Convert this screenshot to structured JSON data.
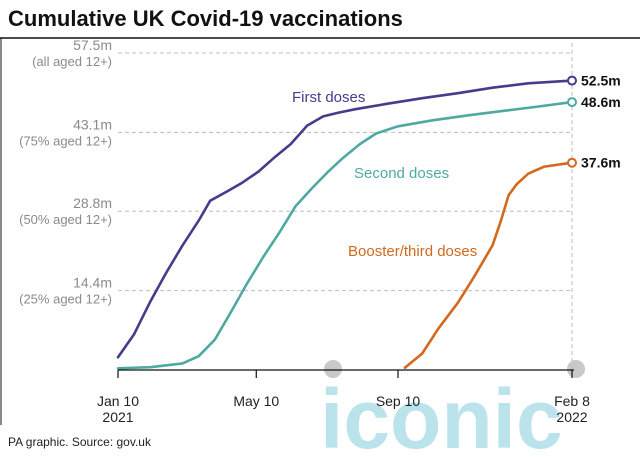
{
  "title": "Cumulative UK Covid-19 vaccinations",
  "source": "PA graphic. Source: gov.uk",
  "watermark": "iconic",
  "colors": {
    "first_doses": "#4a3a8c",
    "second_doses": "#4ea9a0",
    "booster": "#d2691e",
    "grid": "#bdbdbd",
    "watermark": "#a9dde8"
  },
  "chart_data": {
    "type": "line",
    "title": "Cumulative UK Covid-19 vaccinations",
    "xlabel": "",
    "ylabel": "",
    "ylim": [
      0,
      57.5
    ],
    "xlim": [
      "2021-01-10",
      "2022-02-08"
    ],
    "grid": "horizontal dashed",
    "y_ticks": [
      {
        "value": 14.4,
        "label": "14.4m",
        "sub": "(25% aged 12+)"
      },
      {
        "value": 28.8,
        "label": "28.8m",
        "sub": "(50% aged 12+)"
      },
      {
        "value": 43.1,
        "label": "43.1m",
        "sub": "(75% aged 12+)"
      },
      {
        "value": 57.5,
        "label": "57.5m",
        "sub": "(all aged 12+)"
      }
    ],
    "x_ticks": [
      {
        "date": "2021-01-10",
        "line1": "Jan 10",
        "line2": "2021"
      },
      {
        "date": "2021-05-10",
        "line1": "May 10",
        "line2": ""
      },
      {
        "date": "2021-09-10",
        "line1": "Sep 10",
        "line2": ""
      },
      {
        "date": "2022-02-08",
        "line1": "Feb 8",
        "line2": "2022"
      }
    ],
    "series": [
      {
        "name": "First doses",
        "end_label": "52.5m",
        "x": [
          "2021-01-10",
          "2021-01-24",
          "2021-02-07",
          "2021-02-21",
          "2021-03-07",
          "2021-03-21",
          "2021-03-31",
          "2021-04-14",
          "2021-04-28",
          "2021-05-12",
          "2021-05-26",
          "2021-06-09",
          "2021-06-23",
          "2021-07-07",
          "2021-07-21",
          "2021-08-04",
          "2021-09-01",
          "2021-10-01",
          "2021-11-01",
          "2021-12-01",
          "2022-01-01",
          "2022-02-08"
        ],
        "y": [
          2.3,
          6.5,
          12.4,
          17.7,
          22.6,
          27.1,
          30.7,
          32.3,
          34.0,
          36.0,
          38.6,
          41.0,
          44.3,
          46.0,
          46.7,
          47.3,
          48.3,
          49.3,
          50.2,
          51.2,
          52.0,
          52.5
        ]
      },
      {
        "name": "Second doses",
        "end_label": "48.6m",
        "x": [
          "2021-01-10",
          "2021-02-07",
          "2021-03-07",
          "2021-03-21",
          "2021-04-04",
          "2021-04-18",
          "2021-05-02",
          "2021-05-16",
          "2021-05-30",
          "2021-06-13",
          "2021-06-27",
          "2021-07-11",
          "2021-07-25",
          "2021-08-08",
          "2021-08-22",
          "2021-09-10",
          "2021-10-10",
          "2021-11-10",
          "2021-12-10",
          "2022-01-10",
          "2022-02-08"
        ],
        "y": [
          0.3,
          0.5,
          1.2,
          2.5,
          5.5,
          10.5,
          15.7,
          20.5,
          24.9,
          29.7,
          32.9,
          35.9,
          38.6,
          41.0,
          42.9,
          44.2,
          45.3,
          46.2,
          47.0,
          47.8,
          48.6
        ]
      },
      {
        "name": "Booster/third doses",
        "end_label": "37.6m",
        "x": [
          "2021-09-16",
          "2021-10-01",
          "2021-10-15",
          "2021-11-01",
          "2021-11-15",
          "2021-12-01",
          "2021-12-08",
          "2021-12-15",
          "2021-12-22",
          "2022-01-01",
          "2022-01-15",
          "2022-02-08"
        ],
        "y": [
          0.4,
          3.0,
          7.5,
          12.2,
          16.9,
          22.6,
          26.9,
          31.7,
          33.7,
          35.6,
          36.9,
          37.6
        ]
      }
    ]
  }
}
